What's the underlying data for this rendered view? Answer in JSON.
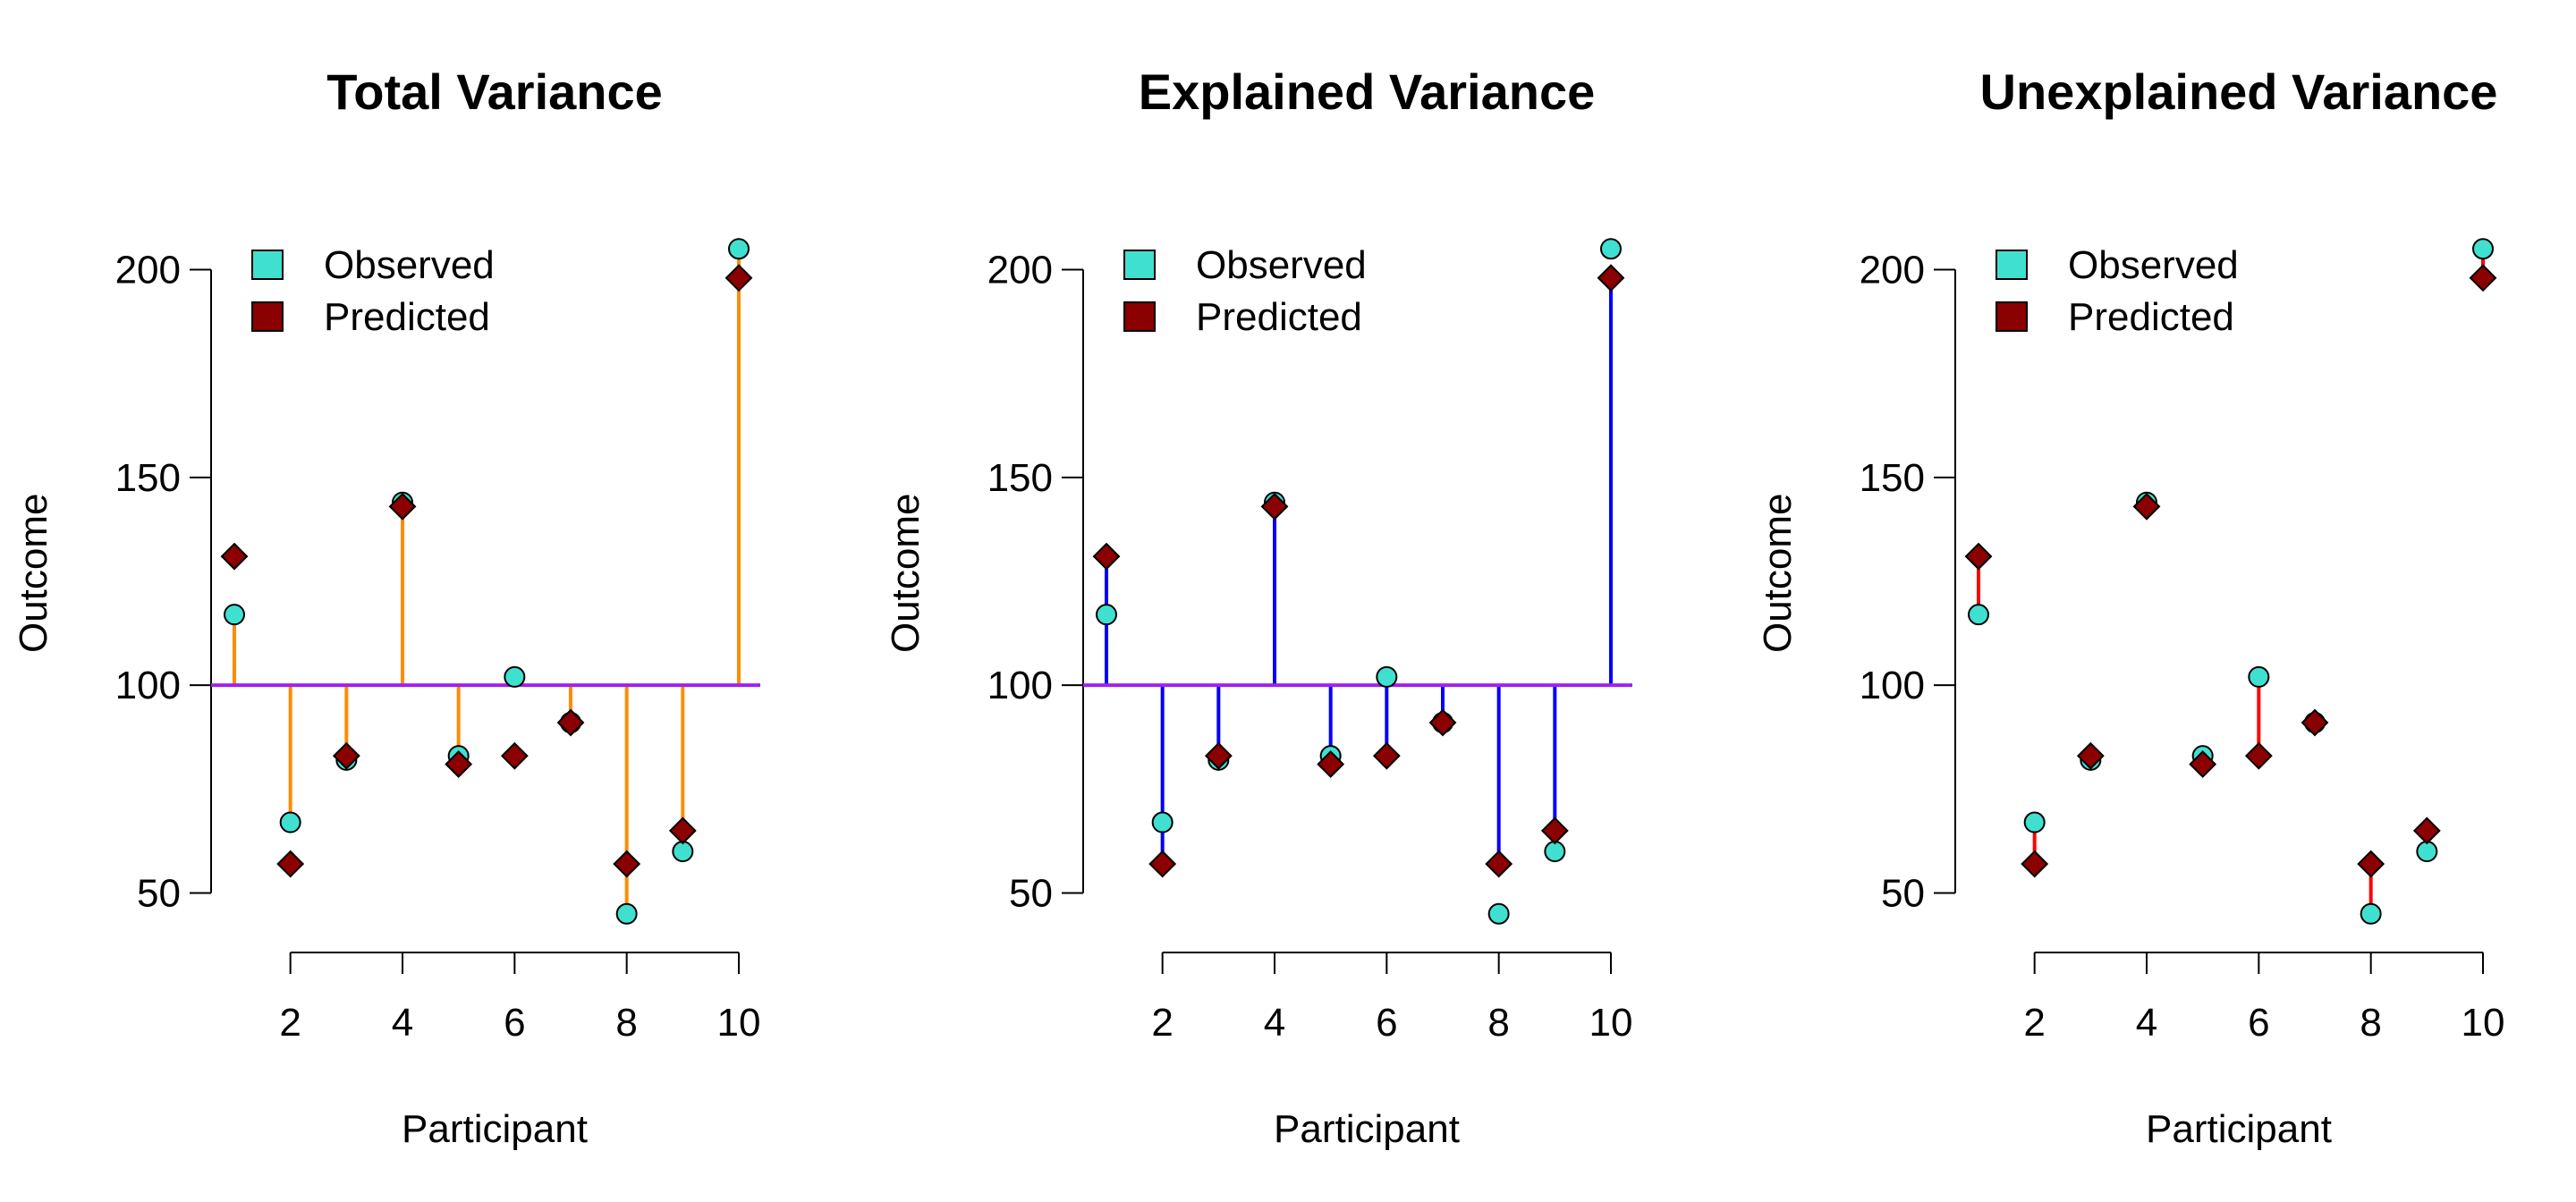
{
  "chart_data": [
    {
      "type": "scatter",
      "title": "Total Variance",
      "xlabel": "Participant",
      "ylabel": "Outcome",
      "x_ticks": [
        2,
        4,
        6,
        8,
        10
      ],
      "y_ticks": [
        50,
        100,
        150,
        200
      ],
      "xlim": [
        0.5,
        10.5
      ],
      "ylim": [
        40,
        210
      ],
      "mean_line": 100,
      "mean_line_color": "#a020f0",
      "segment_mode": "observed_to_mean",
      "segment_color": "#ff8c00",
      "legend_position": "top-left",
      "series": [
        {
          "name": "Observed",
          "marker": "circle",
          "color": "#40e0d0",
          "x": [
            1,
            2,
            3,
            4,
            5,
            6,
            7,
            8,
            9,
            10
          ],
          "values": [
            117,
            67,
            82,
            144,
            83,
            102,
            91,
            45,
            60,
            205
          ]
        },
        {
          "name": "Predicted",
          "marker": "diamond",
          "color": "#8b0000",
          "x": [
            1,
            2,
            3,
            4,
            5,
            6,
            7,
            8,
            9,
            10
          ],
          "values": [
            131,
            57,
            83,
            143,
            81,
            83,
            91,
            57,
            65,
            198
          ]
        }
      ]
    },
    {
      "type": "scatter",
      "title": "Explained Variance",
      "xlabel": "Participant",
      "ylabel": "Outcome",
      "x_ticks": [
        2,
        4,
        6,
        8,
        10
      ],
      "y_ticks": [
        50,
        100,
        150,
        200
      ],
      "xlim": [
        0.5,
        10.5
      ],
      "ylim": [
        40,
        210
      ],
      "mean_line": 100,
      "mean_line_color": "#a020f0",
      "segment_mode": "predicted_to_mean",
      "segment_color": "#0000ff",
      "legend_position": "top-left",
      "series": [
        {
          "name": "Observed",
          "marker": "circle",
          "color": "#40e0d0",
          "x": [
            1,
            2,
            3,
            4,
            5,
            6,
            7,
            8,
            9,
            10
          ],
          "values": [
            117,
            67,
            82,
            144,
            83,
            102,
            91,
            45,
            60,
            205
          ]
        },
        {
          "name": "Predicted",
          "marker": "diamond",
          "color": "#8b0000",
          "x": [
            1,
            2,
            3,
            4,
            5,
            6,
            7,
            8,
            9,
            10
          ],
          "values": [
            131,
            57,
            83,
            143,
            81,
            83,
            91,
            57,
            65,
            198
          ]
        }
      ]
    },
    {
      "type": "scatter",
      "title": "Unexplained Variance",
      "xlabel": "Participant",
      "ylabel": "Outcome",
      "x_ticks": [
        2,
        4,
        6,
        8,
        10
      ],
      "y_ticks": [
        50,
        100,
        150,
        200
      ],
      "xlim": [
        0.5,
        10.5
      ],
      "ylim": [
        40,
        210
      ],
      "segment_mode": "observed_to_predicted",
      "segment_color": "#ff0000",
      "legend_position": "top-left",
      "series": [
        {
          "name": "Observed",
          "marker": "circle",
          "color": "#40e0d0",
          "x": [
            1,
            2,
            3,
            4,
            5,
            6,
            7,
            8,
            9,
            10
          ],
          "values": [
            117,
            67,
            82,
            144,
            83,
            102,
            91,
            45,
            60,
            205
          ]
        },
        {
          "name": "Predicted",
          "marker": "diamond",
          "color": "#8b0000",
          "x": [
            1,
            2,
            3,
            4,
            5,
            6,
            7,
            8,
            9,
            10
          ],
          "values": [
            131,
            57,
            83,
            143,
            81,
            83,
            91,
            57,
            65,
            198
          ]
        }
      ]
    }
  ]
}
